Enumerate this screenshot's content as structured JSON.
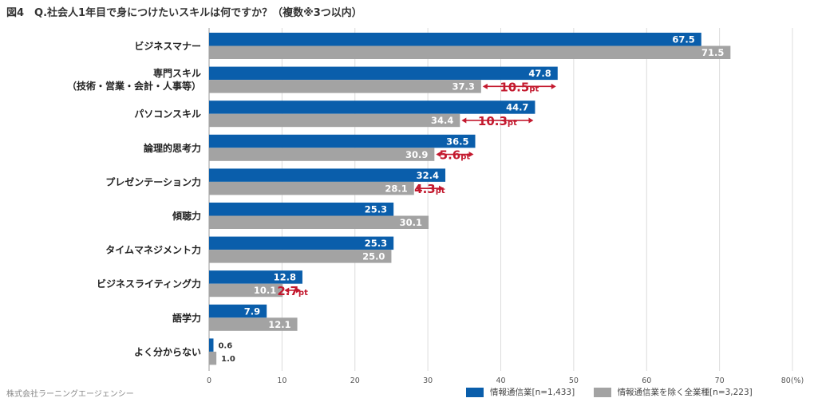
{
  "title": "図4　Q.社会人1年目で身につけたいスキルは何ですか？（複数※3つ以内）",
  "source": "株式会社ラーニングエージェンシー",
  "colors": {
    "primary": "#0a5eab",
    "secondary": "#a3a3a3",
    "diff": "#c3192e",
    "grid": "#dcdcdc"
  },
  "chart_data": {
    "type": "bar",
    "orientation": "horizontal",
    "title": "Q.社会人1年目で身につけたいスキルは何ですか？（複数※3つ以内）",
    "categories": [
      [
        "ビジネスマナー"
      ],
      [
        "専門スキル",
        "（技術・営業・会計・人事等）"
      ],
      [
        "パソコンスキル"
      ],
      [
        "論理的思考力"
      ],
      [
        "プレゼンテーション力"
      ],
      [
        "傾聴力"
      ],
      [
        "タイムマネジメント力"
      ],
      [
        "ビジネスライティング力"
      ],
      [
        "語学力"
      ],
      [
        "よく分からない"
      ]
    ],
    "series": [
      {
        "name": "情報通信業[n=1,433]",
        "values": [
          67.5,
          47.8,
          44.7,
          36.5,
          32.4,
          25.3,
          25.3,
          12.8,
          7.9,
          0.6
        ],
        "labels": [
          "67.5",
          "47.8",
          "44.7",
          "36.5",
          "32.4",
          "25.3",
          "25.3",
          "12.8",
          "7.9",
          "0.6"
        ]
      },
      {
        "name": "情報通信業を除く全業種[n=3,223]",
        "values": [
          71.5,
          37.3,
          34.4,
          30.9,
          28.1,
          30.1,
          25.0,
          10.1,
          12.1,
          1.0
        ],
        "labels": [
          "71.5",
          "37.3",
          "34.4",
          "30.9",
          "28.1",
          "30.1",
          "25.0",
          "10.1",
          "12.1",
          "1.0"
        ]
      }
    ],
    "differences": [
      {
        "category_index": 1,
        "value": "10.5",
        "unit": "pt"
      },
      {
        "category_index": 2,
        "value": "10.3",
        "unit": "pt"
      },
      {
        "category_index": 3,
        "value": "5.6",
        "unit": "pt"
      },
      {
        "category_index": 4,
        "value": "4.3",
        "unit": "pt"
      },
      {
        "category_index": 7,
        "value": "2.7",
        "unit": "pt"
      }
    ],
    "xlim": [
      0,
      80
    ],
    "xticks": [
      "0",
      "10",
      "20",
      "30",
      "40",
      "50",
      "60",
      "70",
      "80(%)"
    ],
    "legend_position": "bottom-right"
  }
}
